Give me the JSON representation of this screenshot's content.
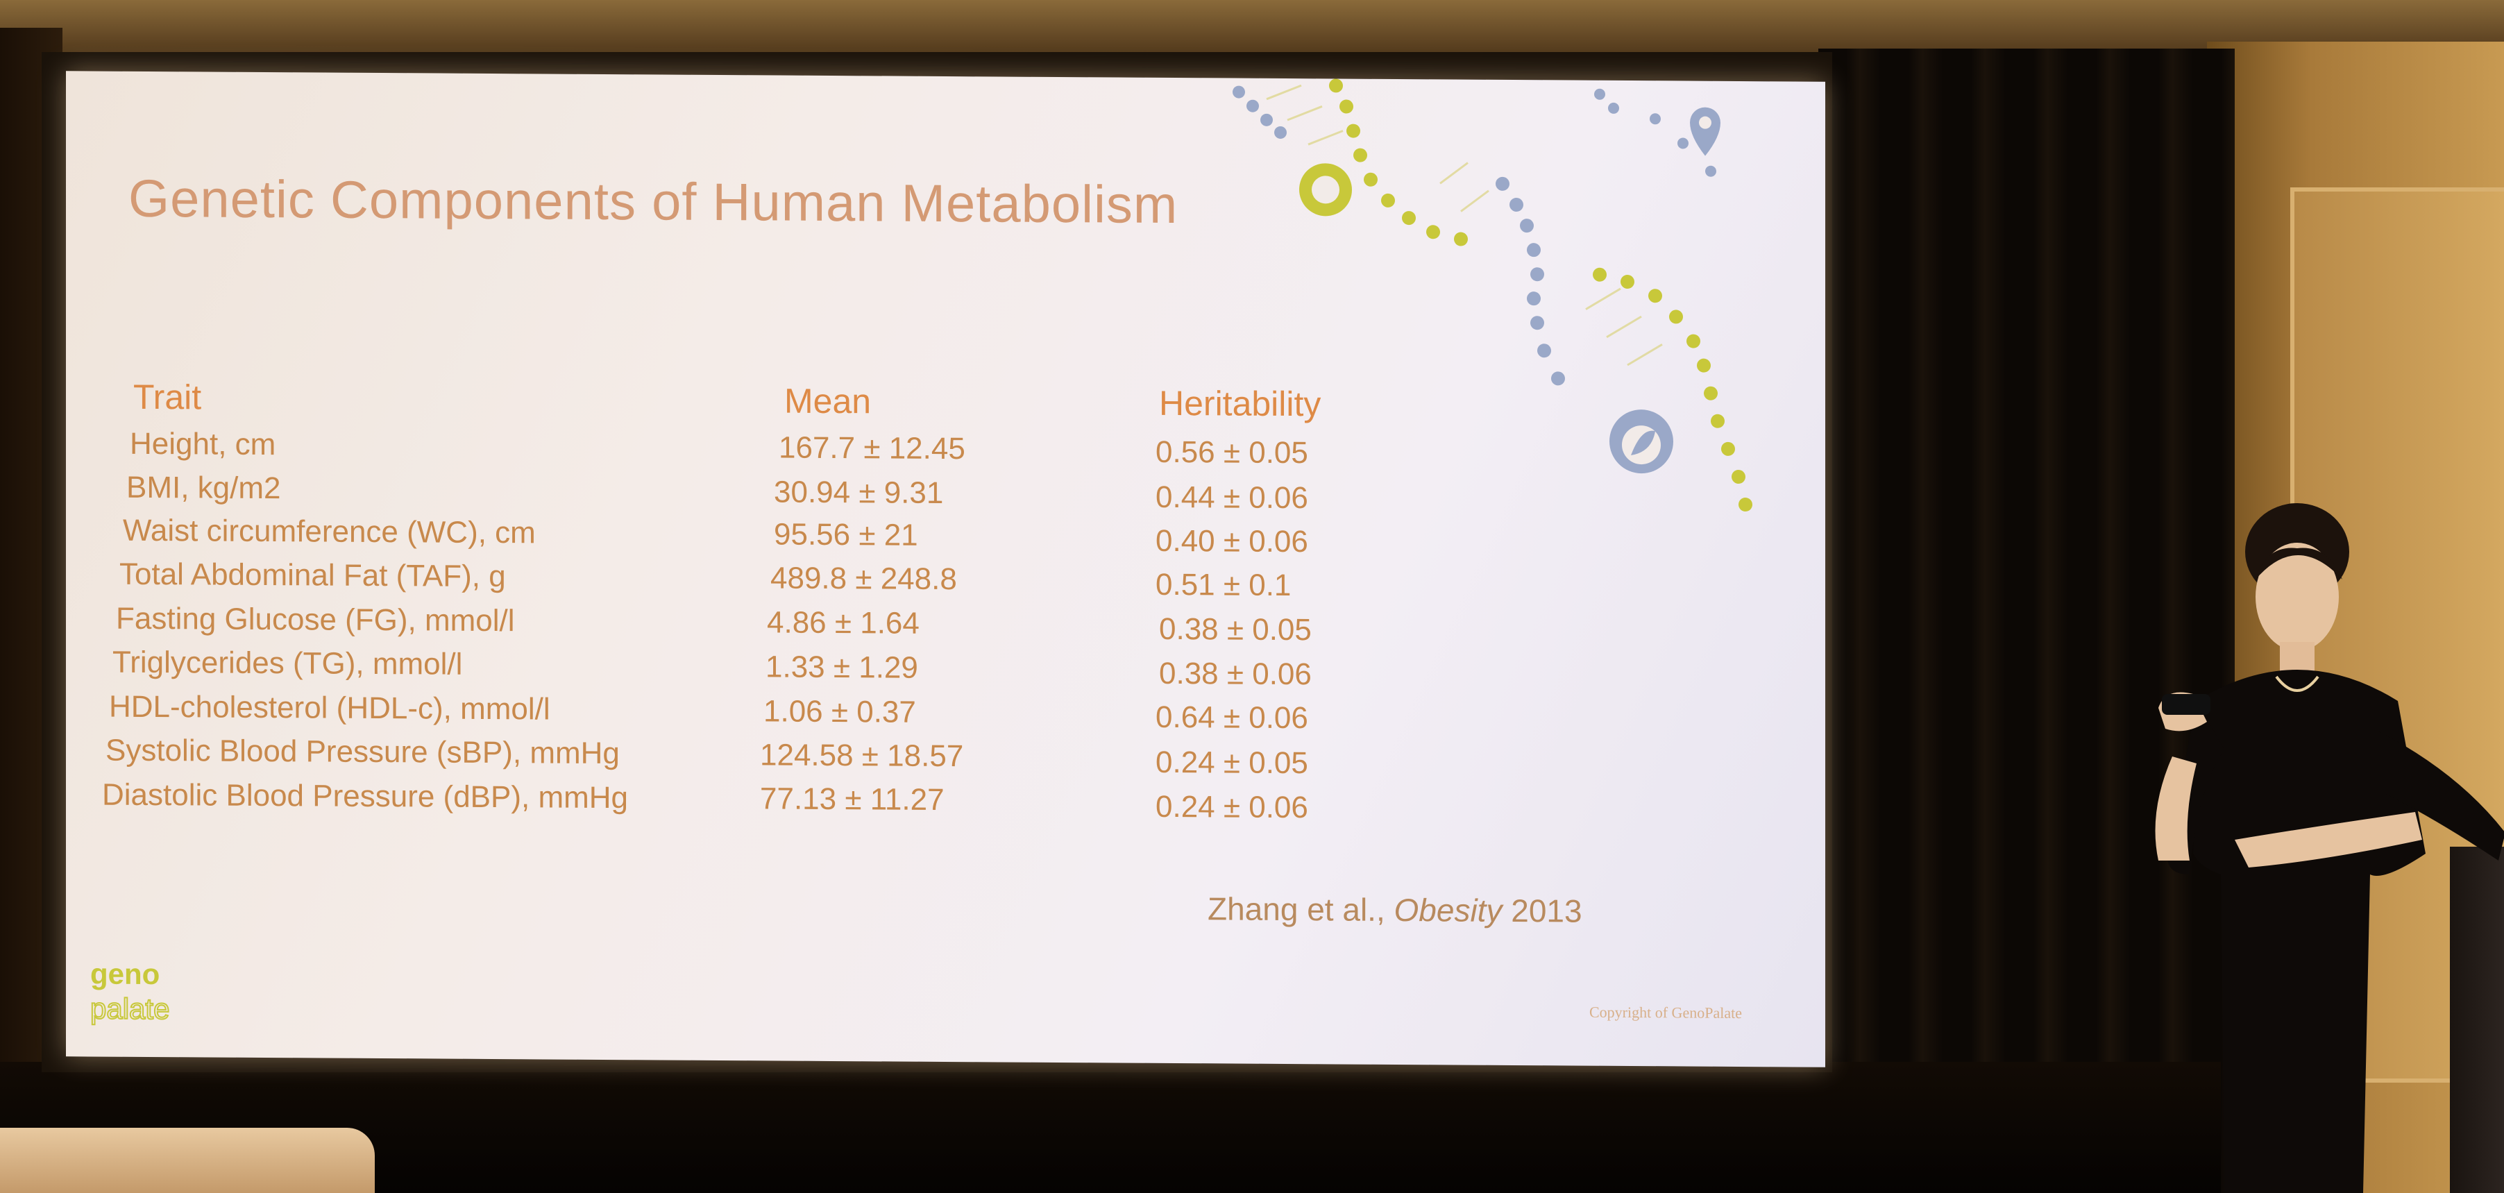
{
  "slide": {
    "title": "Genetic Components of Human Metabolism",
    "columns": [
      "Trait",
      "Mean",
      "Heritability"
    ],
    "rows": [
      {
        "trait": "Height, cm",
        "mean": "167.7 ± 12.45",
        "heritability": "0.56 ± 0.05"
      },
      {
        "trait": "BMI, kg/m2",
        "mean": "30.94 ± 9.31",
        "heritability": "0.44 ± 0.06"
      },
      {
        "trait": "Waist circumference (WC), cm",
        "mean": "95.56 ± 21",
        "heritability": "0.40 ± 0.06"
      },
      {
        "trait": "Total Abdominal Fat (TAF), g",
        "mean": "489.8 ± 248.8",
        "heritability": "0.51 ± 0.1"
      },
      {
        "trait": "Fasting Glucose (FG), mmol/l",
        "mean": "4.86 ± 1.64",
        "heritability": "0.38 ± 0.05"
      },
      {
        "trait": "Triglycerides (TG), mmol/l",
        "mean": "1.33 ± 1.29",
        "heritability": "0.38 ± 0.06"
      },
      {
        "trait": "HDL-cholesterol (HDL-c), mmol/l",
        "mean": "1.06 ± 0.37",
        "heritability": "0.64 ± 0.06"
      },
      {
        "trait": "Systolic Blood Pressure (sBP), mmHg",
        "mean": "124.58 ± 18.57",
        "heritability": "0.24 ± 0.05"
      },
      {
        "trait": "Diastolic Blood Pressure (dBP), mmHg",
        "mean": "77.13 ± 11.27",
        "heritability": "0.24 ± 0.06"
      }
    ],
    "citation": {
      "authors": "Zhang et al.,",
      "journal": "Obesity",
      "year": "2013"
    },
    "logo_text": "geno palate",
    "copyright": "Copyright of GenoPalate"
  },
  "colors": {
    "title": "#d49a74",
    "header": "#de8a46",
    "body_text": "#c8894c",
    "dna_yellow": "#c8c83a",
    "dna_blue": "#9aa8c8",
    "slide_bg": "#f2ebe8"
  },
  "icons": [
    "dna-helix-icon",
    "nutrient-drop-icon",
    "location-pin-icon",
    "leaf-drop-icon",
    "genopalate-logo"
  ]
}
